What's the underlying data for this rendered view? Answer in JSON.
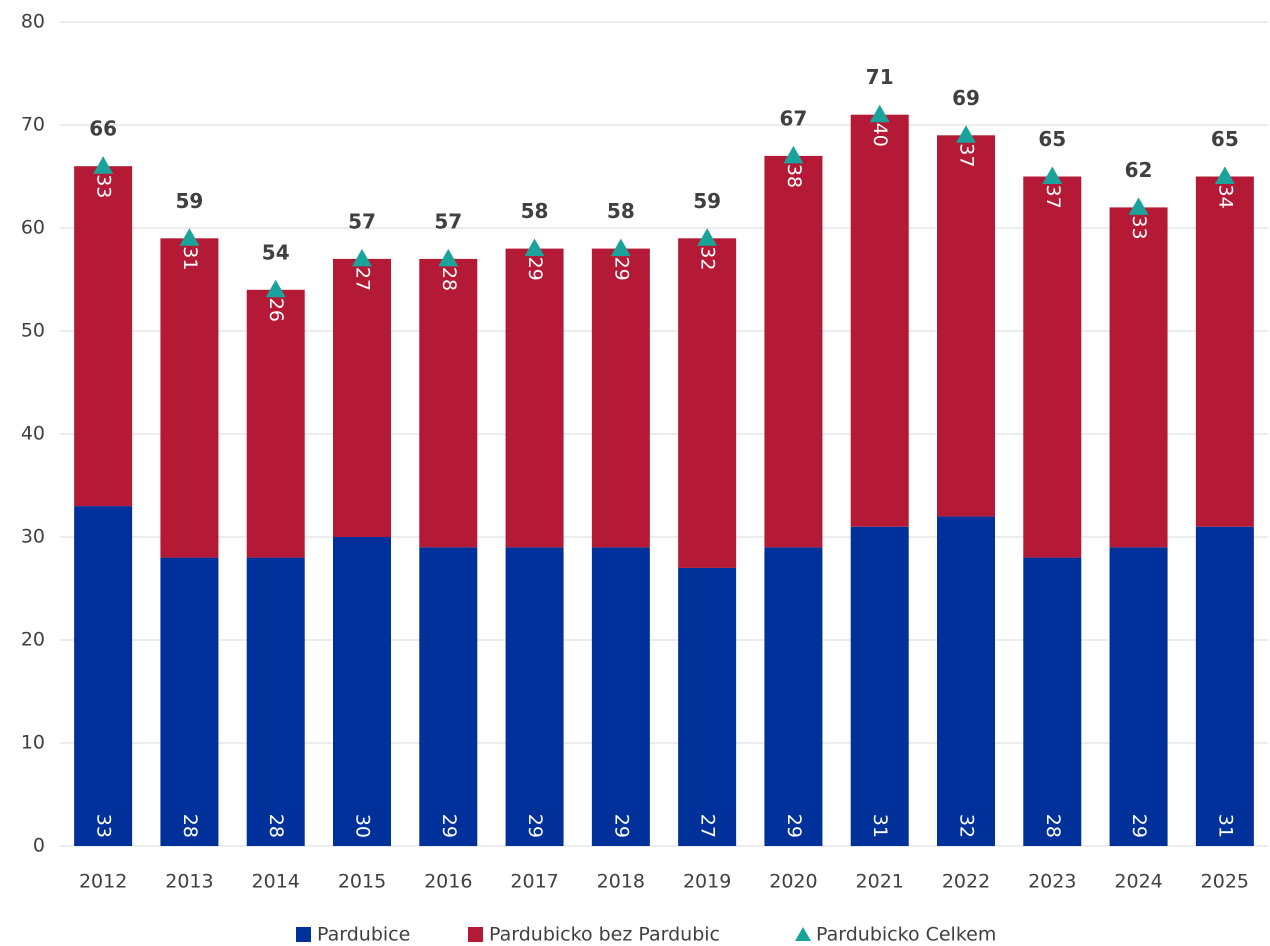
{
  "chart_data": {
    "type": "bar",
    "stacked": true,
    "categories": [
      "2012",
      "2013",
      "2014",
      "2015",
      "2016",
      "2017",
      "2018",
      "2019",
      "2020",
      "2021",
      "2022",
      "2023",
      "2024",
      "2025"
    ],
    "series": [
      {
        "name": "Pardubice",
        "color": "#00309a",
        "values": [
          33,
          28,
          28,
          30,
          29,
          29,
          29,
          27,
          29,
          31,
          32,
          28,
          29,
          31
        ]
      },
      {
        "name": "Pardubicko bez Pardubic",
        "color": "#b41a35",
        "values": [
          33,
          31,
          26,
          27,
          28,
          29,
          29,
          32,
          38,
          40,
          37,
          37,
          33,
          34
        ]
      },
      {
        "name": "Pardubicko Celkem",
        "color": "#1aa39a",
        "type": "scatter",
        "marker": "triangle",
        "values": [
          66,
          59,
          54,
          57,
          57,
          58,
          58,
          59,
          67,
          71,
          69,
          65,
          62,
          65
        ]
      }
    ],
    "ylim": [
      0,
      80
    ],
    "yticks": [
      0,
      10,
      20,
      30,
      40,
      50,
      60,
      70,
      80
    ],
    "grid": true,
    "legend": "bottom"
  }
}
